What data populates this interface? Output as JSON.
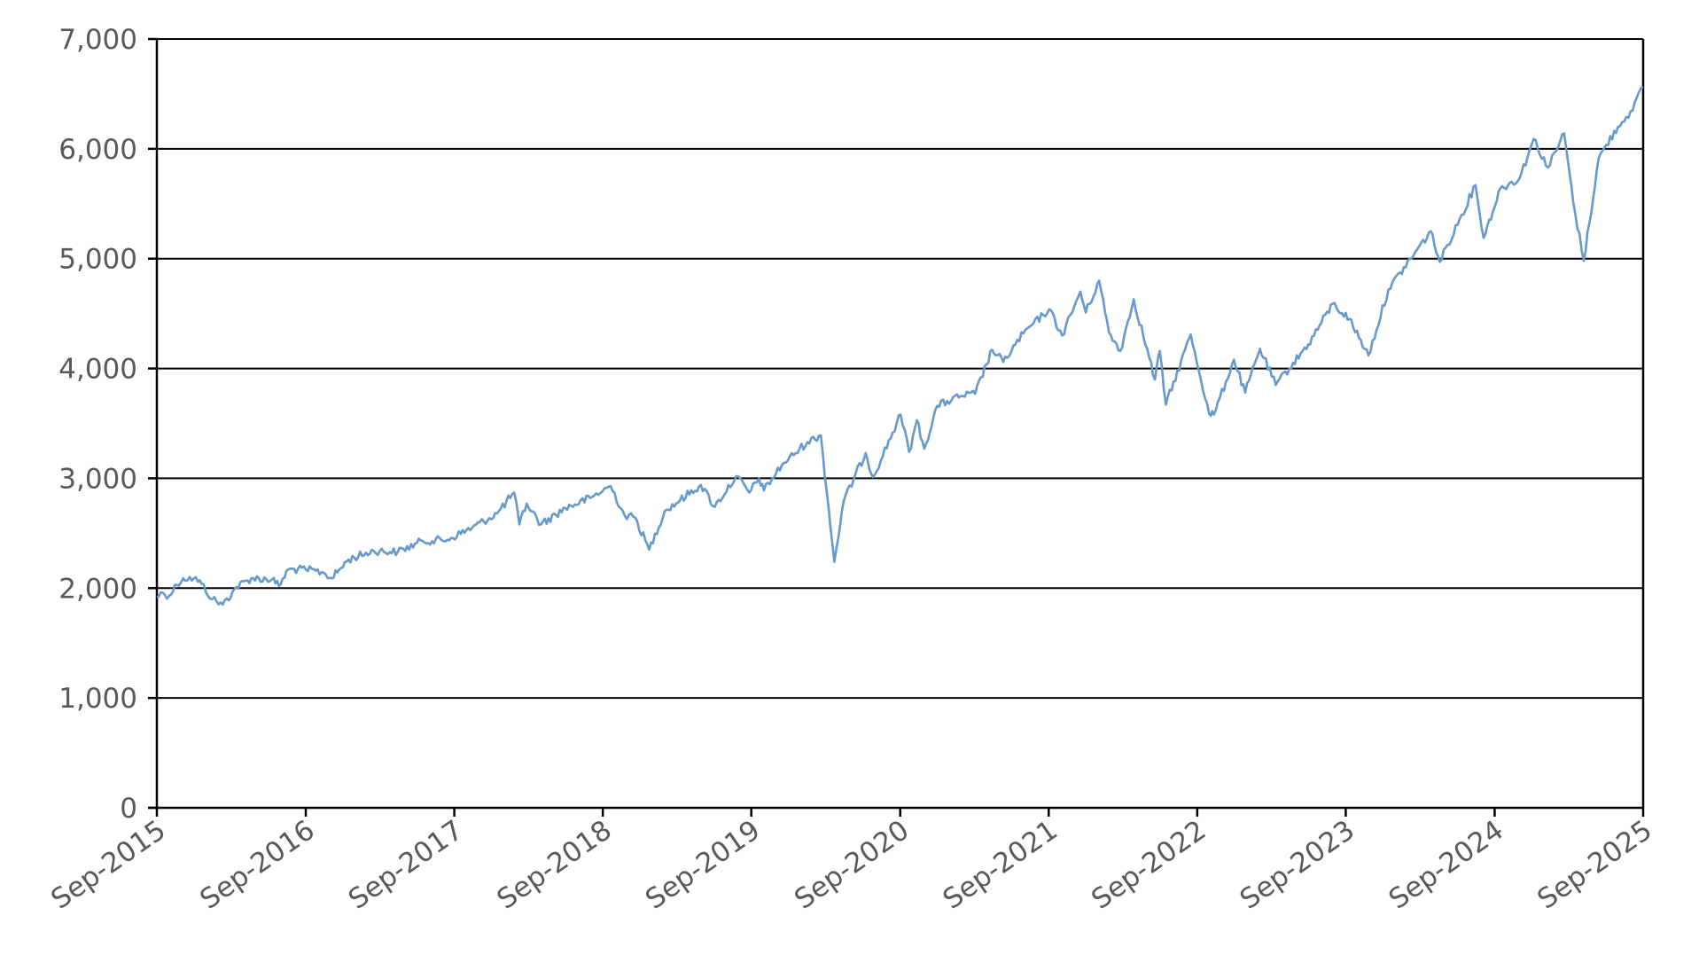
{
  "chart_data": {
    "type": "line",
    "title": "",
    "xlabel": "",
    "ylabel": "",
    "ylim": [
      0,
      7000
    ],
    "yticks": [
      {
        "value": 0,
        "label": "0"
      },
      {
        "value": 1000,
        "label": "1,000"
      },
      {
        "value": 2000,
        "label": "2,000"
      },
      {
        "value": 3000,
        "label": "3,000"
      },
      {
        "value": 4000,
        "label": "4,000"
      },
      {
        "value": 5000,
        "label": "5,000"
      },
      {
        "value": 6000,
        "label": "6,000"
      },
      {
        "value": 7000,
        "label": "7,000"
      }
    ],
    "xlim": [
      "2015-09",
      "2025-09"
    ],
    "xticks": [
      {
        "value": "2015-09",
        "label": "Sep-2015"
      },
      {
        "value": "2016-09",
        "label": "Sep-2016"
      },
      {
        "value": "2017-09",
        "label": "Sep-2017"
      },
      {
        "value": "2018-09",
        "label": "Sep-2018"
      },
      {
        "value": "2019-09",
        "label": "Sep-2019"
      },
      {
        "value": "2020-09",
        "label": "Sep-2020"
      },
      {
        "value": "2021-09",
        "label": "Sep-2021"
      },
      {
        "value": "2022-09",
        "label": "Sep-2022"
      },
      {
        "value": "2023-09",
        "label": "Sep-2023"
      },
      {
        "value": "2024-09",
        "label": "Sep-2024"
      },
      {
        "value": "2025-09",
        "label": "Sep-2025"
      }
    ],
    "grid": true,
    "line_color": "#6699cc",
    "series": [
      {
        "points": [
          [
            "2015-09-01",
            1920
          ],
          [
            "2015-09-15",
            1960
          ],
          [
            "2015-10-01",
            1930
          ],
          [
            "2015-10-20",
            2030
          ],
          [
            "2015-11-05",
            2090
          ],
          [
            "2015-12-01",
            2090
          ],
          [
            "2015-12-20",
            2040
          ],
          [
            "2016-01-15",
            1900
          ],
          [
            "2016-02-10",
            1850
          ],
          [
            "2016-03-15",
            2010
          ],
          [
            "2016-04-20",
            2090
          ],
          [
            "2016-06-10",
            2080
          ],
          [
            "2016-06-27",
            2020
          ],
          [
            "2016-07-20",
            2170
          ],
          [
            "2016-09-01",
            2170
          ],
          [
            "2016-10-15",
            2140
          ],
          [
            "2016-11-04",
            2090
          ],
          [
            "2016-12-15",
            2260
          ],
          [
            "2017-02-15",
            2340
          ],
          [
            "2017-04-15",
            2330
          ],
          [
            "2017-06-15",
            2430
          ],
          [
            "2017-08-15",
            2440
          ],
          [
            "2017-10-15",
            2550
          ],
          [
            "2017-12-15",
            2680
          ],
          [
            "2018-01-26",
            2870
          ],
          [
            "2018-02-08",
            2580
          ],
          [
            "2018-02-26",
            2770
          ],
          [
            "2018-04-02",
            2580
          ],
          [
            "2018-06-01",
            2730
          ],
          [
            "2018-08-01",
            2820
          ],
          [
            "2018-09-20",
            2930
          ],
          [
            "2018-10-25",
            2660
          ],
          [
            "2018-11-20",
            2640
          ],
          [
            "2018-12-24",
            2350
          ],
          [
            "2019-01-31",
            2700
          ],
          [
            "2019-04-30",
            2940
          ],
          [
            "2019-06-03",
            2740
          ],
          [
            "2019-07-26",
            3020
          ],
          [
            "2019-08-27",
            2870
          ],
          [
            "2019-09-20",
            3000
          ],
          [
            "2019-10-02",
            2890
          ],
          [
            "2019-11-15",
            3120
          ],
          [
            "2020-01-17",
            3330
          ],
          [
            "2020-02-19",
            3390
          ],
          [
            "2020-03-23",
            2240
          ],
          [
            "2020-04-15",
            2790
          ],
          [
            "2020-06-08",
            3230
          ],
          [
            "2020-06-26",
            3010
          ],
          [
            "2020-09-02",
            3580
          ],
          [
            "2020-09-23",
            3240
          ],
          [
            "2020-10-12",
            3530
          ],
          [
            "2020-10-30",
            3270
          ],
          [
            "2020-12-01",
            3660
          ],
          [
            "2021-01-28",
            3750
          ],
          [
            "2021-03-04",
            3770
          ],
          [
            "2021-04-15",
            4170
          ],
          [
            "2021-05-12",
            4060
          ],
          [
            "2021-07-01",
            4320
          ],
          [
            "2021-09-02",
            4540
          ],
          [
            "2021-10-04",
            4300
          ],
          [
            "2021-11-18",
            4700
          ],
          [
            "2021-12-01",
            4510
          ],
          [
            "2022-01-03",
            4800
          ],
          [
            "2022-01-27",
            4330
          ],
          [
            "2022-02-24",
            4160
          ],
          [
            "2022-03-29",
            4630
          ],
          [
            "2022-05-20",
            3900
          ],
          [
            "2022-06-01",
            4160
          ],
          [
            "2022-06-16",
            3670
          ],
          [
            "2022-08-16",
            4310
          ],
          [
            "2022-09-30",
            3590
          ],
          [
            "2022-10-12",
            3580
          ],
          [
            "2022-11-30",
            4080
          ],
          [
            "2022-12-28",
            3780
          ],
          [
            "2023-02-02",
            4180
          ],
          [
            "2023-03-13",
            3850
          ],
          [
            "2023-06-01",
            4220
          ],
          [
            "2023-07-31",
            4590
          ],
          [
            "2023-09-10",
            4450
          ],
          [
            "2023-10-27",
            4120
          ],
          [
            "2023-12-15",
            4720
          ],
          [
            "2024-03-28",
            5250
          ],
          [
            "2024-04-19",
            4970
          ],
          [
            "2024-07-16",
            5670
          ],
          [
            "2024-08-05",
            5190
          ],
          [
            "2024-09-15",
            5640
          ],
          [
            "2024-11-01",
            5730
          ],
          [
            "2024-12-06",
            6090
          ],
          [
            "2025-01-10",
            5830
          ],
          [
            "2025-02-19",
            6140
          ],
          [
            "2025-03-13",
            5520
          ],
          [
            "2025-04-08",
            4980
          ],
          [
            "2025-05-15",
            5920
          ],
          [
            "2025-07-01",
            6200
          ],
          [
            "2025-08-01",
            6340
          ],
          [
            "2025-09-01",
            6560
          ]
        ]
      }
    ]
  }
}
